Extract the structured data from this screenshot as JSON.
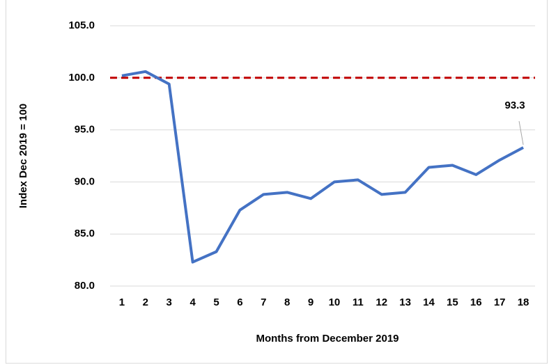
{
  "chart_data": {
    "type": "line",
    "x_label": "Months from December 2019",
    "y_label": "Index Dec 2019 = 100",
    "categories": [
      "1",
      "2",
      "3",
      "4",
      "5",
      "6",
      "7",
      "8",
      "9",
      "10",
      "11",
      "12",
      "13",
      "14",
      "15",
      "16",
      "17",
      "18"
    ],
    "series": [
      {
        "name": "Index",
        "color": "#4472c4",
        "values": [
          100.2,
          100.6,
          99.4,
          82.3,
          83.3,
          87.3,
          88.8,
          89.0,
          88.4,
          90.0,
          90.2,
          88.8,
          89.0,
          91.4,
          91.6,
          90.7,
          92.1,
          93.3
        ]
      }
    ],
    "labeled_point": 17,
    "reference_line": {
      "value": 100,
      "color": "#c00000",
      "style": "dashed"
    },
    "ylim": [
      80,
      105
    ],
    "yticks": [
      {
        "value": 80,
        "label": "80.0"
      },
      {
        "value": 85,
        "label": "85.0"
      },
      {
        "value": 90,
        "label": "90.0"
      },
      {
        "value": 95,
        "label": "95.0"
      },
      {
        "value": 100,
        "label": "100.0"
      },
      {
        "value": 105,
        "label": "105.0"
      }
    ],
    "grid": true
  }
}
